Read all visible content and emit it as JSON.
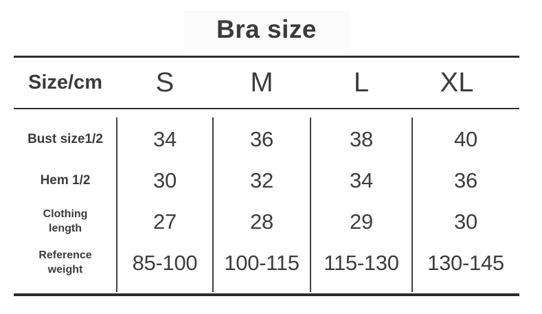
{
  "title": "Bra size",
  "table": {
    "header": {
      "label": "Size/cm",
      "sizes": [
        "S",
        "M",
        "L",
        "XL"
      ]
    },
    "rows": [
      {
        "label": "Bust size1/2",
        "values": [
          "34",
          "36",
          "38",
          "40"
        ]
      },
      {
        "label": "Hem 1/2",
        "values": [
          "30",
          "32",
          "34",
          "36"
        ]
      },
      {
        "label": "Clothing\nlength",
        "values": [
          "27",
          "28",
          "29",
          "30"
        ]
      },
      {
        "label": "Reference\nweight",
        "values": [
          "85-100",
          "100-115",
          "115-130",
          "130-145"
        ]
      }
    ]
  },
  "colors": {
    "background": "#ffffff",
    "text": "#3b3b3b",
    "line": "#2d2d2d"
  }
}
